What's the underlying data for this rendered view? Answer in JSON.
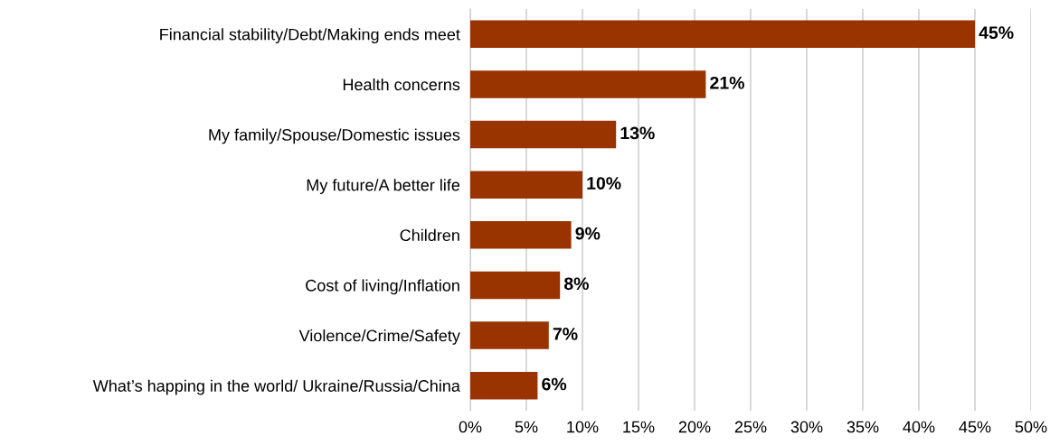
{
  "chart_data": {
    "type": "bar",
    "orientation": "horizontal",
    "categories": [
      "Financial stability/Debt/Making ends meet",
      "Health concerns",
      "My family/Spouse/Domestic issues",
      "My future/A better life",
      "Children",
      "Cost of living/Inflation",
      "Violence/Crime/Safety",
      "What’s happing in the world/ Ukraine/Russia/China"
    ],
    "values": [
      45,
      21,
      13,
      10,
      9,
      8,
      7,
      6
    ],
    "value_labels": [
      "45%",
      "21%",
      "13%",
      "10%",
      "9%",
      "8%",
      "7%",
      "6%"
    ],
    "color": "#993300",
    "xlim": [
      0,
      50
    ],
    "xticks": [
      {
        "value": 0,
        "label": "0%"
      },
      {
        "value": 5,
        "label": "5%"
      },
      {
        "value": 10,
        "label": "10%"
      },
      {
        "value": 15,
        "label": "15%"
      },
      {
        "value": 20,
        "label": "20%"
      },
      {
        "value": 25,
        "label": "25%"
      },
      {
        "value": 30,
        "label": "30%"
      },
      {
        "value": 35,
        "label": "35%"
      },
      {
        "value": 40,
        "label": "40%"
      },
      {
        "value": 45,
        "label": "45%"
      },
      {
        "value": 50,
        "label": "50%"
      }
    ],
    "grid": "x",
    "legend": false
  }
}
